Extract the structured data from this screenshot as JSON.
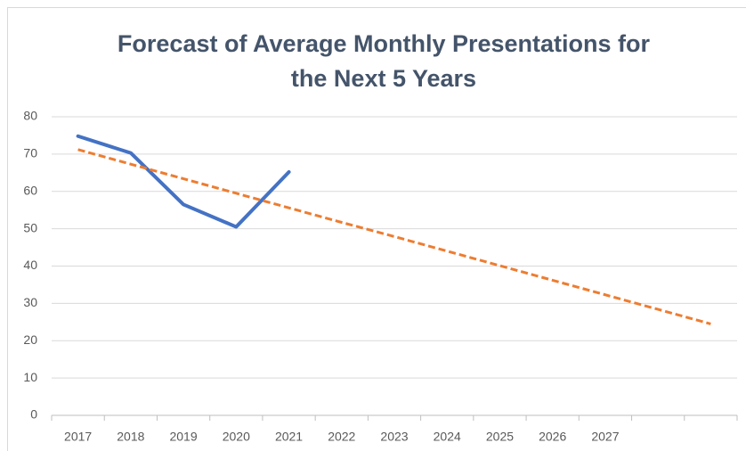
{
  "chart_data": {
    "type": "line",
    "title": [
      "Forecast of Average Monthly Presentations for",
      "the Next 5 Years"
    ],
    "categories": [
      "2017",
      "2018",
      "2019",
      "2020",
      "2021",
      "2022",
      "2023",
      "2024",
      "2025",
      "2026",
      "2027",
      null,
      null
    ],
    "series": [
      {
        "color": "#4472c4",
        "values": [
          74.8,
          70.3,
          56.5,
          50.5,
          65.2,
          null,
          null,
          null,
          null,
          null,
          null,
          null,
          null
        ]
      },
      {
        "color": "#ed7d31",
        "dashed": true,
        "values": [
          71.2,
          67.3,
          63.4,
          59.5,
          55.6,
          51.7,
          47.9,
          44.0,
          40.1,
          36.2,
          32.3,
          28.4,
          24.5
        ]
      }
    ],
    "ylim": [
      0,
      80
    ],
    "yticks": [
      0,
      10,
      20,
      30,
      40,
      50,
      60,
      70,
      80
    ],
    "grid": true
  }
}
